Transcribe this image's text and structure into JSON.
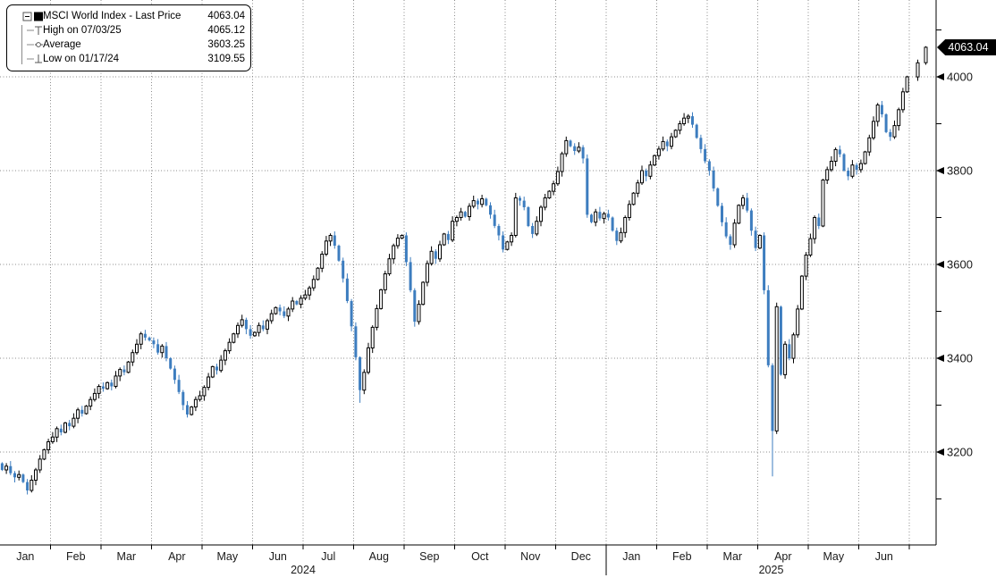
{
  "legend": {
    "series": {
      "label": "MSCI World Index - Last Price",
      "value": "4063.04"
    },
    "high": {
      "label": "High on 07/03/25",
      "value": "4065.12"
    },
    "average": {
      "label": "Average",
      "value": "3603.25"
    },
    "low": {
      "label": "Low on 01/17/24",
      "value": "3109.55"
    }
  },
  "chart_data": {
    "type": "candlestick",
    "title": "MSCI World Index - Last Price",
    "last_price": 4063.04,
    "last_price_label": "4063.04",
    "high_point": {
      "date": "07/03/25",
      "value": 4065.12
    },
    "average": 3603.25,
    "low_point": {
      "date": "01/17/24",
      "value": 3109.55
    },
    "y_axis": {
      "major_ticks": [
        3200,
        3400,
        3600,
        3800,
        4000
      ],
      "minor_ticks": [
        3100,
        3300,
        3500,
        3700,
        3900,
        4100
      ],
      "side": "right",
      "ylim": [
        3005,
        4170
      ]
    },
    "x_axis": {
      "months": [
        "Jan",
        "Feb",
        "Mar",
        "Apr",
        "May",
        "Jun",
        "Jul",
        "Aug",
        "Sep",
        "Oct",
        "Nov",
        "Dec",
        "Jan",
        "Feb",
        "Mar",
        "Apr",
        "May",
        "Jun"
      ],
      "years": [
        "2024",
        "2025"
      ],
      "year_split_month_index": 12
    },
    "grid": "dotted",
    "legend_position": "top-left",
    "closes": [
      3162,
      3170,
      3155,
      3146,
      3152,
      3136,
      3118,
      3140,
      3162,
      3185,
      3205,
      3222,
      3232,
      3250,
      3242,
      3262,
      3255,
      3272,
      3290,
      3282,
      3298,
      3312,
      3325,
      3340,
      3335,
      3348,
      3340,
      3362,
      3376,
      3370,
      3392,
      3412,
      3430,
      3452,
      3444,
      3438,
      3430,
      3412,
      3426,
      3400,
      3378,
      3354,
      3328,
      3300,
      3280,
      3296,
      3312,
      3320,
      3338,
      3360,
      3382,
      3374,
      3396,
      3416,
      3434,
      3452,
      3470,
      3482,
      3462,
      3448,
      3455,
      3470,
      3462,
      3480,
      3495,
      3508,
      3500,
      3490,
      3505,
      3522,
      3515,
      3528,
      3535,
      3550,
      3568,
      3592,
      3622,
      3650,
      3662,
      3640,
      3608,
      3570,
      3522,
      3468,
      3402,
      3332,
      3370,
      3422,
      3466,
      3506,
      3546,
      3580,
      3612,
      3640,
      3656,
      3662,
      3605,
      3545,
      3478,
      3515,
      3562,
      3602,
      3628,
      3612,
      3642,
      3665,
      3652,
      3692,
      3700,
      3712,
      3702,
      3724,
      3736,
      3728,
      3740,
      3726,
      3706,
      3682,
      3662,
      3632,
      3648,
      3662,
      3742,
      3736,
      3722,
      3682,
      3665,
      3692,
      3722,
      3742,
      3756,
      3772,
      3798,
      3836,
      3864,
      3852,
      3842,
      3850,
      3826,
      3706,
      3690,
      3712,
      3698,
      3708,
      3700,
      3672,
      3650,
      3668,
      3700,
      3728,
      3752,
      3774,
      3800,
      3788,
      3812,
      3832,
      3846,
      3862,
      3852,
      3872,
      3886,
      3900,
      3912,
      3916,
      3898,
      3870,
      3846,
      3820,
      3800,
      3762,
      3725,
      3690,
      3660,
      3642,
      3688,
      3726,
      3742,
      3715,
      3672,
      3635,
      3662,
      3545,
      3385,
      3245,
      3510,
      3365,
      3430,
      3400,
      3450,
      3505,
      3575,
      3620,
      3655,
      3700,
      3682,
      3780,
      3802,
      3820,
      3845,
      3835,
      3800,
      3788,
      3812,
      3802,
      3815,
      3840,
      3870,
      3905,
      3940,
      3920,
      3882,
      3872,
      3896,
      3930,
      3968,
      4000,
      4030,
      4063.04
    ],
    "samples_per_month": 12,
    "wick_overrides": {
      "6": {
        "low": 3109.55
      },
      "85": {
        "low": 3305
      },
      "183": {
        "low": 3148
      },
      "217": {
        "high": 4065.12
      }
    },
    "colors": {
      "up_candle_fill": "#ffffff",
      "up_candle_border": "#000000",
      "down_candle": "#3d7dbf",
      "grid": "#8c8c8c",
      "axis": "#000000",
      "last_price_tag_bg": "#000000",
      "last_price_tag_text": "#ffffff"
    }
  }
}
